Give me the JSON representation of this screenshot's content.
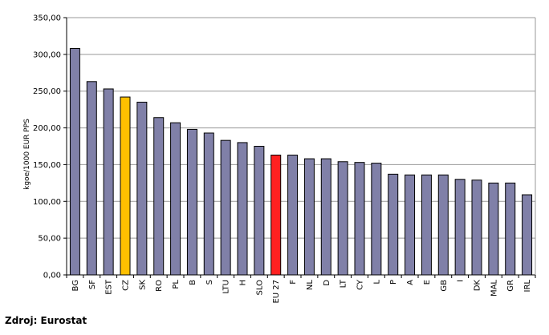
{
  "chart_data": {
    "type": "bar",
    "categories": [
      "BG",
      "SF",
      "EST",
      "CZ",
      "SK",
      "RO",
      "PL",
      "B",
      "S",
      "LTU",
      "H",
      "SLO",
      "EU 27",
      "F",
      "NL",
      "D",
      "LT",
      "CY",
      "L",
      "P",
      "A",
      "E",
      "GB",
      "I",
      "DK",
      "MAL",
      "GR",
      "IRL"
    ],
    "values": [
      308,
      263,
      253,
      242,
      235,
      214,
      207,
      198,
      193,
      183,
      180,
      175,
      163,
      163,
      158,
      158,
      154,
      153,
      152,
      137,
      136,
      136,
      136,
      130,
      129,
      125,
      125,
      109
    ],
    "title": "",
    "xlabel": "",
    "ylabel": "kgoe/1000 EUR PPS",
    "ylim": [
      0,
      350
    ],
    "yticks": [
      "0,00",
      "50,00",
      "100,00",
      "150,00",
      "200,00",
      "250,00",
      "300,00",
      "350,00"
    ],
    "grid": true,
    "colors": {
      "default": "#8080a8",
      "highlight_CZ": "#ffc000",
      "highlight_EU27": "#ff2020",
      "grid": "#999999"
    }
  },
  "source_label": "Zdroj: Eurostat"
}
